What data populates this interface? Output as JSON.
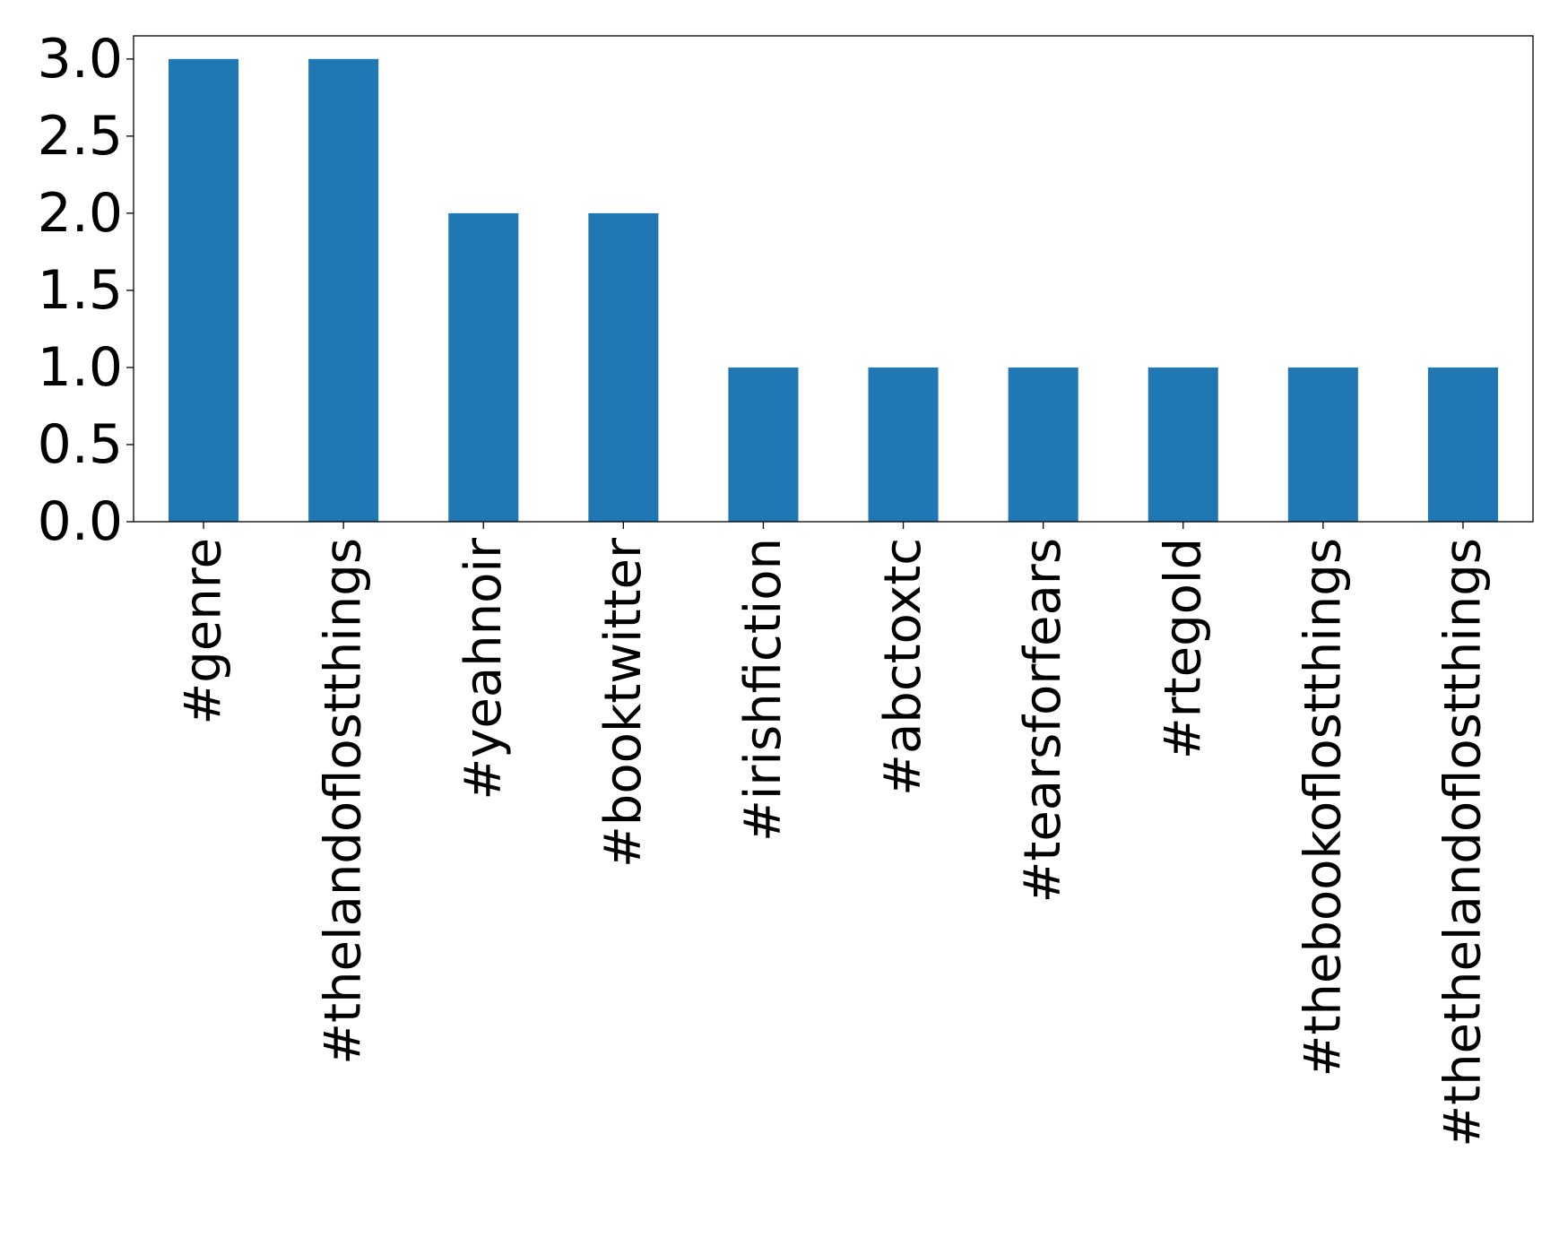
{
  "chart_data": {
    "type": "bar",
    "title": "",
    "xlabel": "",
    "ylabel": "",
    "categories": [
      "#genre",
      "#thelandoflostthings",
      "#yeahnoir",
      "#booktwitter",
      "#irishfiction",
      "#abctoxtc",
      "#tearsforfears",
      "#rtegold",
      "#thebookoflostthings",
      "#thethelandoflostthings"
    ],
    "values": [
      3,
      3,
      2,
      2,
      1,
      1,
      1,
      1,
      1,
      1
    ],
    "ylim": [
      0,
      3.15
    ],
    "yticks": [
      0.0,
      0.5,
      1.0,
      1.5,
      2.0,
      2.5,
      3.0
    ],
    "ytick_labels": [
      "0.0",
      "0.5",
      "1.0",
      "1.5",
      "2.0",
      "2.5",
      "3.0"
    ],
    "grid": false,
    "bar_color": "#1f77b4"
  }
}
